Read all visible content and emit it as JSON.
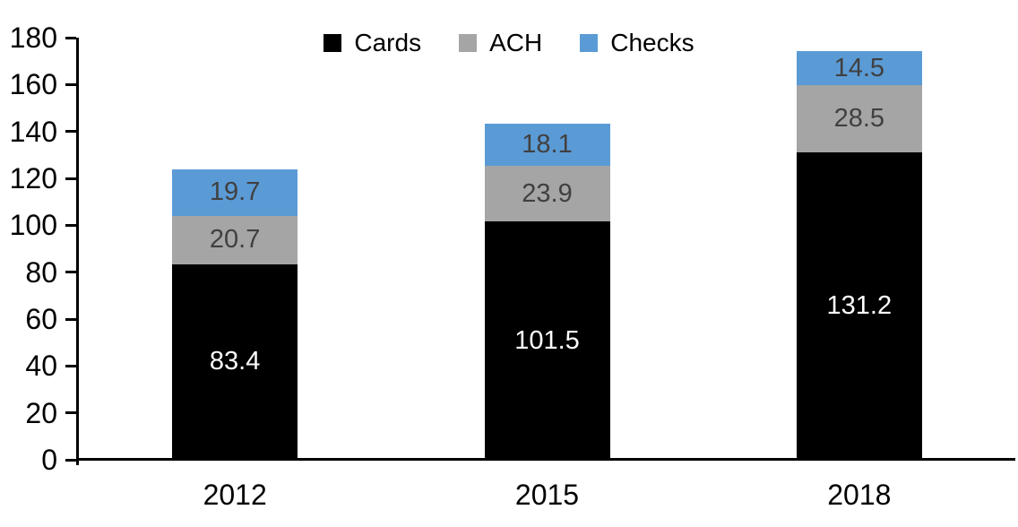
{
  "chart_data": {
    "type": "bar",
    "stacked": true,
    "title": "",
    "categories": [
      "2012",
      "2015",
      "2018"
    ],
    "series": [
      {
        "name": "Cards",
        "color": "#000000",
        "label_color": "#FFFFFF",
        "values": [
          83.4,
          101.5,
          131.2
        ]
      },
      {
        "name": "ACH",
        "color": "#A5A5A5",
        "label_color": "#404040",
        "values": [
          20.7,
          23.9,
          28.5
        ]
      },
      {
        "name": "Checks",
        "color": "#5B9BD5",
        "label_color": "#404040",
        "values": [
          19.7,
          18.1,
          14.5
        ]
      }
    ],
    "ylim": [
      0,
      180
    ],
    "yticks": [
      0,
      20,
      40,
      60,
      80,
      100,
      120,
      140,
      160,
      180
    ],
    "value_label_decimals": 1,
    "legend_position": "top",
    "grid": false,
    "axis_color": "#000000",
    "background": "#FFFFFF"
  }
}
